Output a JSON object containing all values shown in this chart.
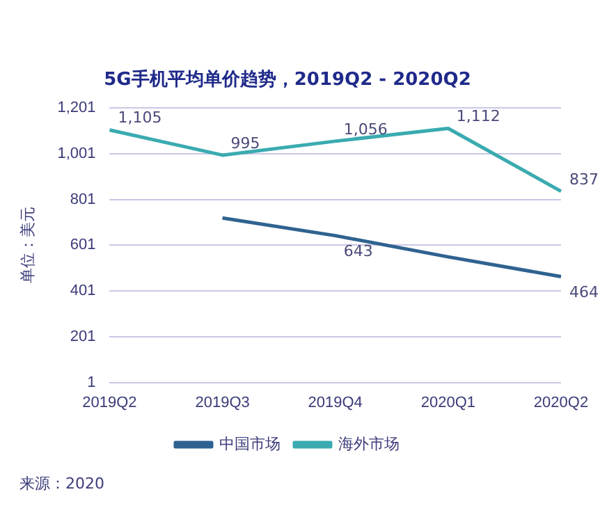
{
  "chart_data": {
    "type": "line",
    "title": "5G手机平均单价趋势，2019Q2 - 2020Q2",
    "ylabel": "单位：美元",
    "categories": [
      "2019Q2",
      "2019Q3",
      "2019Q4",
      "2020Q1",
      "2020Q2"
    ],
    "series": [
      {
        "name": "中国市场",
        "color": "#2f6290",
        "values": [
          null,
          720,
          643,
          550,
          464
        ],
        "value_labels": [
          null,
          null,
          "643",
          null,
          "464"
        ]
      },
      {
        "name": "海外市场",
        "color": "#3aabb0",
        "values": [
          1105,
          995,
          1056,
          1112,
          837
        ],
        "value_labels": [
          "1,105",
          "995",
          "1,056",
          "1,112",
          "837"
        ]
      }
    ],
    "ylim": [
      1,
      1201
    ],
    "yticks": [
      1,
      201,
      401,
      601,
      801,
      {
        "value": 1001,
        "label": "1,001"
      },
      {
        "value": 1201,
        "label": "1,201"
      }
    ],
    "grid": "y",
    "legend": "bottom",
    "marker": "none",
    "line_style": "solid",
    "annotations": [
      "来源：2020"
    ]
  }
}
